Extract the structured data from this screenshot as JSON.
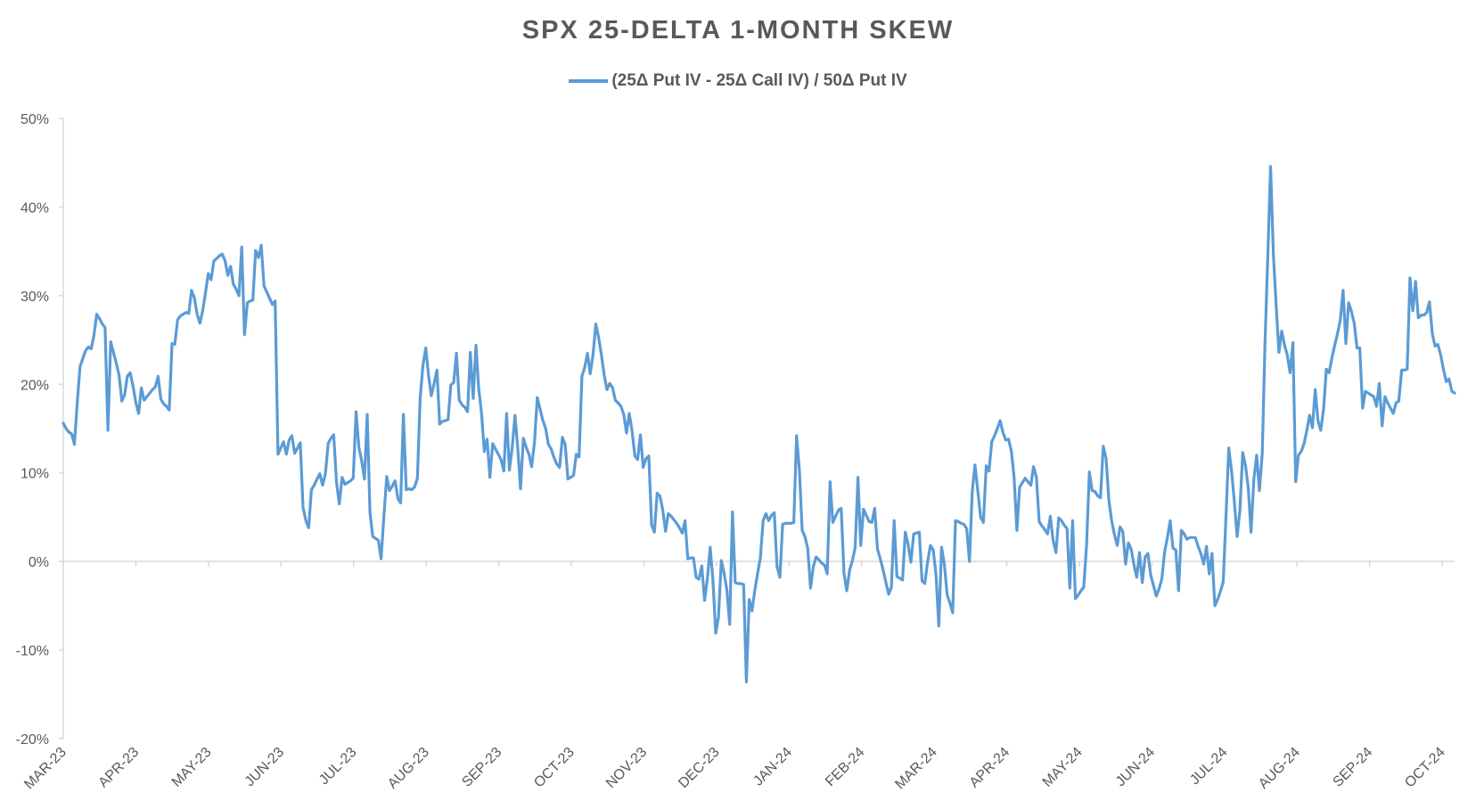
{
  "chart_data": {
    "type": "line",
    "title": "SPX 25-DELTA 1-MONTH SKEW",
    "xlabel": "",
    "ylabel": "",
    "ylim": [
      -20,
      50
    ],
    "y_ticks": [
      "50%",
      "40%",
      "30%",
      "20%",
      "10%",
      "0%",
      "-10%",
      "-20%"
    ],
    "y_tick_values": [
      50,
      40,
      30,
      20,
      10,
      0,
      -10,
      -20
    ],
    "x_ticks": [
      "MAR-23",
      "APR-23",
      "MAY-23",
      "JUN-23",
      "JUL-23",
      "AUG-23",
      "SEP-23",
      "OCT-23",
      "NOV-23",
      "DEC-23",
      "JAN-24",
      "FEB-24",
      "MAR-24",
      "APR-24",
      "MAY-24",
      "JUN-24",
      "JUL-24",
      "AUG-24",
      "SEP-24",
      "OCT-24"
    ],
    "grid": false,
    "legend_position": "top",
    "line_color": "#5b9bd5",
    "series": [
      {
        "name": "(25Δ Put IV - 25Δ Call IV) / 50Δ Put IV",
        "x_start": "2023-03-01",
        "values": [
          15.6,
          15.0,
          14.6,
          14.4,
          13.2,
          17.8,
          22.0,
          22.9,
          23.8,
          24.2,
          24.0,
          25.5,
          27.9,
          27.4,
          26.8,
          26.4,
          14.8,
          24.8,
          23.6,
          22.4,
          21.0,
          18.1,
          18.8,
          20.9,
          21.3,
          19.8,
          18.0,
          16.7,
          19.6,
          18.2,
          18.6,
          19.0,
          19.4,
          19.7,
          20.9,
          18.3,
          17.8,
          17.5,
          17.1,
          24.6,
          24.5,
          27.3,
          27.7,
          27.9,
          28.1,
          28.0,
          30.6,
          29.8,
          27.9,
          26.9,
          28.3,
          30.3,
          32.5,
          31.8,
          33.9,
          34.2,
          34.5,
          34.7,
          34.0,
          32.3,
          33.3,
          31.3,
          30.7,
          30.0,
          35.5,
          25.6,
          29.2,
          29.4,
          29.5,
          35.1,
          34.3,
          35.7,
          31.1,
          30.4,
          29.7,
          29.0,
          29.4,
          12.1,
          12.8,
          13.5,
          12.1,
          13.7,
          14.2,
          12.2,
          12.8,
          13.4,
          6.1,
          4.6,
          3.8,
          8.1,
          8.6,
          9.3,
          9.9,
          8.6,
          9.9,
          13.3,
          13.9,
          14.3,
          8.9,
          6.5,
          9.5,
          8.7,
          8.9,
          9.1,
          9.4,
          16.9,
          12.9,
          11.4,
          9.3,
          16.6,
          5.5,
          2.8,
          2.6,
          2.4,
          0.3,
          5.1,
          9.6,
          8.0,
          8.5,
          9.1,
          7.1,
          6.6,
          16.6,
          8.1,
          8.2,
          8.1,
          8.4,
          9.4,
          18.4,
          22.1,
          24.1,
          21.0,
          18.7,
          20.1,
          21.6,
          15.5,
          15.8,
          15.9,
          16.0,
          19.9,
          20.2,
          23.5,
          18.2,
          17.7,
          17.4,
          16.9,
          23.6,
          18.4,
          24.4,
          19.5,
          16.8,
          12.4,
          13.8,
          9.5,
          13.3,
          12.7,
          12.1,
          11.5,
          10.2,
          16.7,
          10.3,
          12.8,
          16.5,
          12.8,
          8.2,
          13.9,
          12.9,
          12.1,
          10.7,
          13.5,
          18.5,
          17.2,
          15.9,
          15.0,
          13.2,
          12.7,
          11.7,
          11.0,
          10.6,
          14.0,
          13.2,
          9.3,
          9.5,
          9.7,
          12.1,
          11.8,
          20.9,
          21.9,
          23.5,
          21.2,
          23.4,
          26.8,
          25.3,
          23.3,
          21.0,
          19.4,
          20.1,
          19.6,
          18.2,
          17.9,
          17.5,
          16.6,
          14.5,
          16.7,
          14.7,
          11.9,
          11.5,
          14.3,
          10.6,
          11.6,
          11.9,
          4.1,
          3.3,
          7.7,
          7.4,
          5.8,
          3.4,
          5.4,
          5.1,
          4.7,
          4.3,
          3.8,
          3.2,
          4.6,
          0.3,
          0.4,
          0.4,
          -1.8,
          -2.0,
          -0.5,
          -4.4,
          -2.0,
          1.6,
          -2.2,
          -8.1,
          -6.3,
          0.1,
          -1.3,
          -3.2,
          -7.1,
          5.6,
          -2.4,
          -2.5,
          -2.5,
          -2.6,
          -13.6,
          -4.3,
          -5.6,
          -3.3,
          -1.4,
          0.4,
          4.6,
          5.4,
          4.6,
          5.2,
          5.5,
          -0.6,
          -1.8,
          4.2,
          4.3,
          4.3,
          4.3,
          4.4,
          14.2,
          10.3,
          3.5,
          2.8,
          1.5,
          -3.0,
          -0.6,
          0.5,
          0.2,
          -0.2,
          -0.4,
          -1.4,
          9.0,
          4.4,
          5.1,
          5.8,
          6.0,
          -1.3,
          -3.3,
          -1.0,
          0.1,
          1.5,
          9.5,
          1.8,
          5.9,
          5.2,
          4.5,
          4.4,
          6.0,
          1.4,
          0.3,
          -0.9,
          -2.3,
          -3.7,
          -2.9,
          4.6,
          -1.7,
          -1.9,
          -2.1,
          3.3,
          1.9,
          -0.1,
          3.1,
          3.2,
          3.3,
          -2.2,
          -2.5,
          0.0,
          1.8,
          1.3,
          -1.4,
          -7.3,
          1.6,
          -0.3,
          -3.8,
          -4.7,
          -5.8,
          4.6,
          4.5,
          4.3,
          4.2,
          3.7,
          0.0,
          7.9,
          10.9,
          7.9,
          5.0,
          4.4,
          10.8,
          10.2,
          13.5,
          14.2,
          15.0,
          15.9,
          14.6,
          13.7,
          13.8,
          12.5,
          9.6,
          3.5,
          8.4,
          8.9,
          9.4,
          9.0,
          8.6,
          10.7,
          9.5,
          4.5,
          4.0,
          3.6,
          3.1,
          5.1,
          2.4,
          1.0,
          4.9,
          4.6,
          4.1,
          3.7,
          -3.0,
          4.6,
          -4.2,
          -3.8,
          -3.3,
          -2.9,
          1.9,
          10.1,
          8.0,
          7.9,
          7.4,
          7.2,
          13.0,
          11.6,
          6.9,
          4.6,
          3.0,
          1.8,
          3.9,
          3.4,
          -0.3,
          2.1,
          1.4,
          -0.4,
          -1.8,
          1.0,
          -2.4,
          0.5,
          0.9,
          -1.5,
          -2.7,
          -3.9,
          -3.1,
          -2.0,
          1.1,
          2.7,
          4.6,
          1.5,
          1.3,
          -3.3,
          3.5,
          3.1,
          2.5,
          2.7,
          2.7,
          2.7,
          1.7,
          0.9,
          -0.3,
          1.7,
          -1.4,
          0.9,
          -5.0,
          -4.3,
          -3.4,
          -2.3,
          5.1,
          12.8,
          10.3,
          6.7,
          2.8,
          5.8,
          12.3,
          10.8,
          8.3,
          3.3,
          9.3,
          12.0,
          8.0,
          12.2,
          24.8,
          34.4,
          44.6,
          34.6,
          28.9,
          23.6,
          26.0,
          24.4,
          23.3,
          21.3,
          24.7,
          9.0,
          12.0,
          12.4,
          13.3,
          14.8,
          16.5,
          15.1,
          19.4,
          15.9,
          14.8,
          17.2,
          21.7,
          21.3,
          23.0,
          24.4,
          25.7,
          27.2,
          30.6,
          24.6,
          29.2,
          28.2,
          26.9,
          24.1,
          24.1,
          17.3,
          19.2,
          19.0,
          18.8,
          18.6,
          17.5,
          20.1,
          15.3,
          18.6,
          17.9,
          17.3,
          16.7,
          17.9,
          18.1,
          21.6,
          21.6,
          21.7,
          32.0,
          28.3,
          31.6,
          27.5,
          27.8,
          27.8,
          28.1,
          29.3,
          25.7,
          24.3,
          24.5,
          23.3,
          21.7,
          20.3,
          20.6,
          19.2,
          19.0
        ]
      }
    ]
  }
}
